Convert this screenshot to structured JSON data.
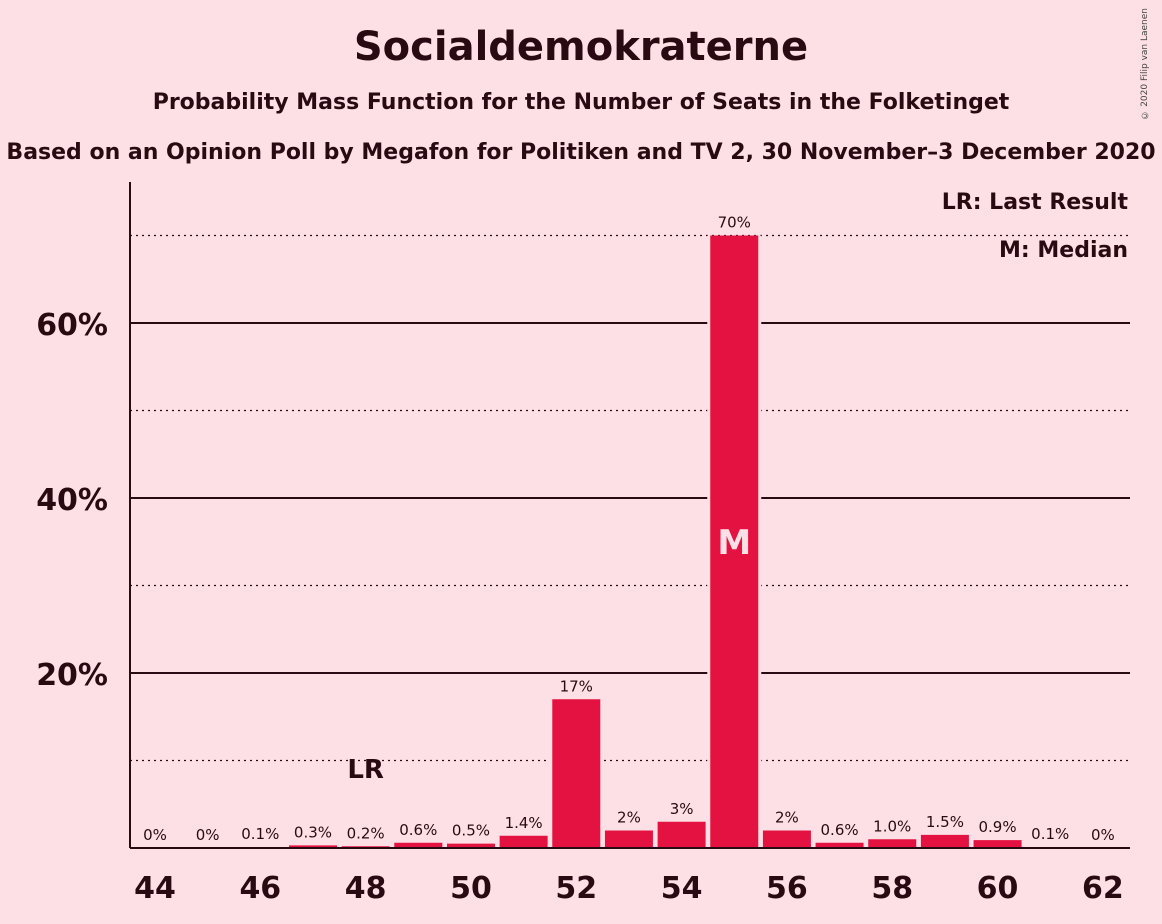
{
  "chart_data": {
    "type": "bar",
    "title": "Socialdemokraterne",
    "subtitle": "Probability Mass Function for the Number of Seats in the Folketinget",
    "subtitle2": "Based on an Opinion Poll by Megafon for Politiken and TV 2, 30 November–3 December 2020",
    "copyright": "© 2020 Filip van Laenen",
    "categories": [
      44,
      45,
      46,
      47,
      48,
      49,
      50,
      51,
      52,
      53,
      54,
      55,
      56,
      57,
      58,
      59,
      60,
      61,
      62
    ],
    "values": [
      0,
      0,
      0.1,
      0.3,
      0.2,
      0.6,
      0.5,
      1.4,
      17,
      2,
      3,
      70,
      2,
      0.6,
      1.0,
      1.5,
      0.9,
      0.1,
      0
    ],
    "value_labels": [
      "0%",
      "0%",
      "0.1%",
      "0.3%",
      "0.2%",
      "0.6%",
      "0.5%",
      "1.4%",
      "17%",
      "2%",
      "3%",
      "70%",
      "2%",
      "0.6%",
      "1.0%",
      "1.5%",
      "0.9%",
      "0.1%",
      "0%"
    ],
    "x_tick_labels": [
      "44",
      "46",
      "48",
      "50",
      "52",
      "54",
      "56",
      "58",
      "60",
      "62"
    ],
    "y_tick_labels": [
      "20%",
      "40%",
      "60%"
    ],
    "ylim": [
      0,
      76
    ],
    "last_result_seat": 48,
    "median_seat": 55,
    "lr_marker": "LR",
    "median_marker": "M",
    "legend": [
      "LR: Last Result",
      "M: Median"
    ],
    "bar_color": "#e31240",
    "background_color": "#fde0e6"
  }
}
